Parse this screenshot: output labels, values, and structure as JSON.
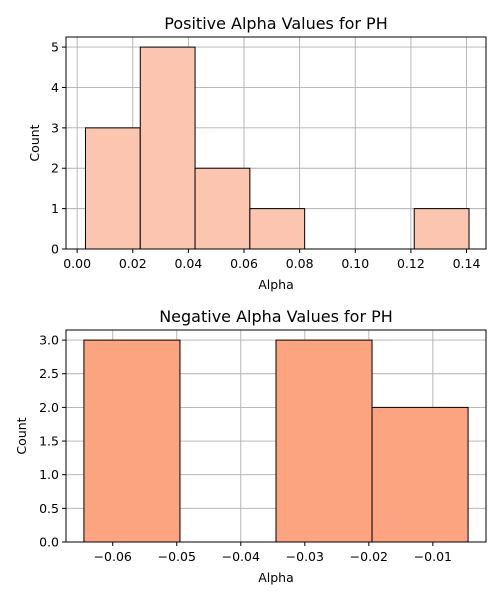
{
  "chart_data": [
    {
      "type": "bar",
      "title": "Positive Alpha Values for PH",
      "xlabel": "Alpha",
      "ylabel": "Count",
      "xlim": [
        -0.004,
        0.147
      ],
      "ylim": [
        0,
        5.25
      ],
      "xticks": [
        0.0,
        0.02,
        0.04,
        0.06,
        0.08,
        0.1,
        0.12,
        0.14
      ],
      "xtick_labels": [
        "0.00",
        "0.02",
        "0.04",
        "0.06",
        "0.08",
        "0.10",
        "0.12",
        "0.14"
      ],
      "yticks": [
        0,
        1,
        2,
        3,
        4,
        5
      ],
      "ytick_labels": [
        "0",
        "1",
        "2",
        "3",
        "4",
        "5"
      ],
      "grid": true,
      "bar_color": "#fcc5b0",
      "bins": [
        {
          "x0": 0.003,
          "x1": 0.0227,
          "count": 3
        },
        {
          "x0": 0.0227,
          "x1": 0.0424,
          "count": 5
        },
        {
          "x0": 0.0424,
          "x1": 0.0621,
          "count": 2
        },
        {
          "x0": 0.0621,
          "x1": 0.0818,
          "count": 1
        },
        {
          "x0": 0.1212,
          "x1": 0.1409,
          "count": 1
        }
      ]
    },
    {
      "type": "bar",
      "title": "Negative Alpha Values for PH",
      "xlabel": "Alpha",
      "ylabel": "Count",
      "xlim": [
        -0.0673,
        -0.0017
      ],
      "ylim": [
        0,
        3.15
      ],
      "xticks": [
        -0.06,
        -0.05,
        -0.04,
        -0.03,
        -0.02,
        -0.01
      ],
      "xtick_labels": [
        "−0.06",
        "−0.05",
        "−0.04",
        "−0.03",
        "−0.02",
        "−0.01"
      ],
      "yticks": [
        0,
        0.5,
        1.0,
        1.5,
        2.0,
        2.5,
        3.0
      ],
      "ytick_labels": [
        "0.0",
        "0.5",
        "1.0",
        "1.5",
        "2.0",
        "2.5",
        "3.0"
      ],
      "grid": true,
      "bar_color": "#fca380",
      "bins": [
        {
          "x0": -0.0645,
          "x1": -0.0495,
          "count": 3
        },
        {
          "x0": -0.0345,
          "x1": -0.0195,
          "count": 3
        },
        {
          "x0": -0.0195,
          "x1": -0.0045,
          "count": 2
        }
      ]
    }
  ]
}
